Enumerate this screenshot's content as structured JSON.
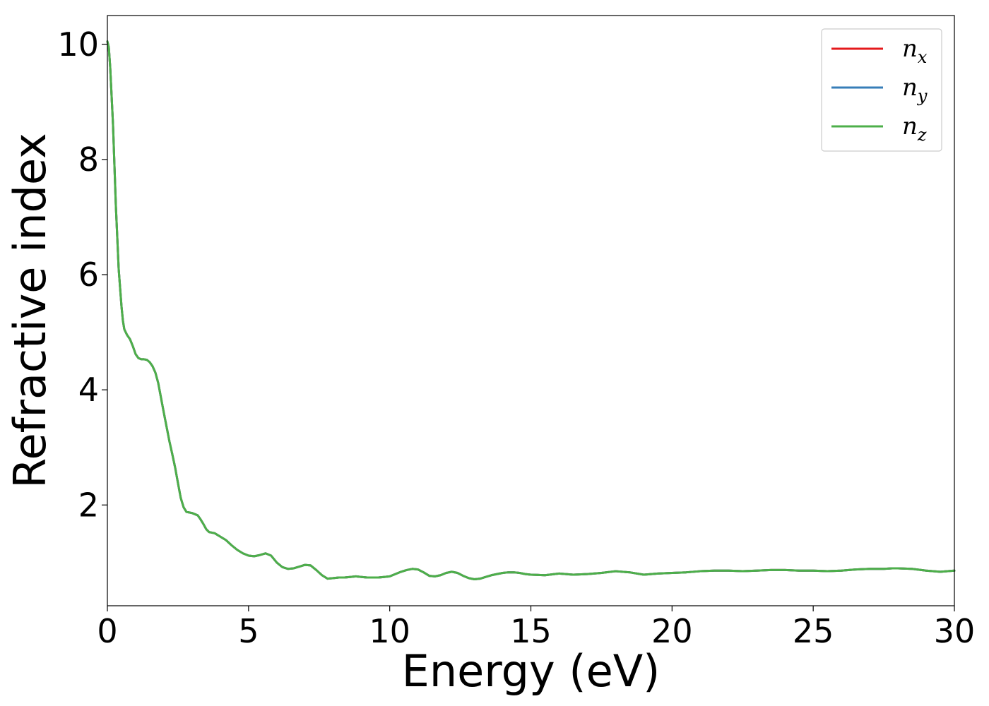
{
  "chart_data": {
    "type": "line",
    "xlabel": "Energy (eV)",
    "ylabel": "Refractive index",
    "xlim": [
      0,
      30
    ],
    "ylim": [
      0.25,
      10.5
    ],
    "xticks": [
      0,
      5,
      10,
      15,
      20,
      25,
      30
    ],
    "xtick_labels": [
      "0",
      "5",
      "10",
      "15",
      "20",
      "25",
      "30"
    ],
    "yticks": [
      2,
      4,
      6,
      8,
      10
    ],
    "ytick_labels": [
      "2",
      "4",
      "6",
      "8",
      "10"
    ],
    "grid": false,
    "legend_position": "top-right",
    "x": [
      0,
      0.05,
      0.1,
      0.2,
      0.3,
      0.4,
      0.5,
      0.55,
      0.6,
      0.7,
      0.8,
      0.9,
      1.0,
      1.1,
      1.2,
      1.3,
      1.4,
      1.5,
      1.6,
      1.7,
      1.8,
      1.9,
      2.0,
      2.1,
      2.2,
      2.3,
      2.4,
      2.5,
      2.6,
      2.7,
      2.8,
      2.9,
      3.0,
      3.1,
      3.2,
      3.3,
      3.4,
      3.5,
      3.6,
      3.7,
      3.8,
      3.9,
      4.0,
      4.2,
      4.4,
      4.6,
      4.8,
      5.0,
      5.2,
      5.4,
      5.6,
      5.8,
      6.0,
      6.2,
      6.4,
      6.6,
      6.8,
      7.0,
      7.2,
      7.4,
      7.6,
      7.8,
      8.0,
      8.2,
      8.4,
      8.6,
      8.8,
      9.0,
      9.2,
      9.4,
      9.6,
      9.8,
      10.0,
      10.2,
      10.4,
      10.6,
      10.8,
      11.0,
      11.2,
      11.4,
      11.6,
      11.8,
      12.0,
      12.2,
      12.4,
      12.6,
      12.8,
      13.0,
      13.2,
      13.4,
      13.6,
      13.8,
      14.0,
      14.2,
      14.4,
      14.6,
      14.8,
      15.0,
      15.5,
      16.0,
      16.5,
      17.0,
      17.5,
      18.0,
      18.5,
      19.0,
      19.5,
      20.0,
      20.5,
      21.0,
      21.5,
      22.0,
      22.5,
      23.0,
      23.5,
      24.0,
      24.5,
      25.0,
      25.5,
      26.0,
      26.5,
      27.0,
      27.5,
      27.8,
      28.0,
      28.5,
      29.0,
      29.5,
      30.0
    ],
    "series": [
      {
        "name": "n_x",
        "name_base": "n",
        "name_sub": "x",
        "color": "#e41a1c",
        "y": [
          10.05,
          9.95,
          9.6,
          8.6,
          7.2,
          6.1,
          5.45,
          5.2,
          5.05,
          4.95,
          4.88,
          4.76,
          4.62,
          4.55,
          4.53,
          4.53,
          4.52,
          4.48,
          4.41,
          4.3,
          4.12,
          3.86,
          3.6,
          3.35,
          3.1,
          2.88,
          2.65,
          2.38,
          2.12,
          1.96,
          1.88,
          1.87,
          1.86,
          1.84,
          1.82,
          1.75,
          1.67,
          1.58,
          1.53,
          1.52,
          1.51,
          1.48,
          1.45,
          1.39,
          1.3,
          1.22,
          1.16,
          1.12,
          1.11,
          1.13,
          1.16,
          1.12,
          1.0,
          0.92,
          0.89,
          0.9,
          0.93,
          0.96,
          0.95,
          0.87,
          0.78,
          0.72,
          0.73,
          0.74,
          0.74,
          0.75,
          0.76,
          0.75,
          0.74,
          0.74,
          0.74,
          0.75,
          0.76,
          0.8,
          0.84,
          0.87,
          0.89,
          0.88,
          0.83,
          0.77,
          0.76,
          0.78,
          0.82,
          0.84,
          0.82,
          0.77,
          0.73,
          0.71,
          0.72,
          0.75,
          0.78,
          0.8,
          0.82,
          0.83,
          0.83,
          0.82,
          0.8,
          0.79,
          0.78,
          0.81,
          0.79,
          0.8,
          0.82,
          0.85,
          0.83,
          0.79,
          0.81,
          0.82,
          0.83,
          0.85,
          0.86,
          0.86,
          0.85,
          0.86,
          0.87,
          0.87,
          0.86,
          0.86,
          0.85,
          0.86,
          0.88,
          0.89,
          0.89,
          0.9,
          0.9,
          0.89,
          0.86,
          0.84,
          0.86
        ]
      },
      {
        "name": "n_y",
        "name_base": "n",
        "name_sub": "y",
        "color": "#377eb8",
        "y": [
          10.05,
          9.95,
          9.6,
          8.6,
          7.2,
          6.1,
          5.45,
          5.2,
          5.05,
          4.95,
          4.88,
          4.76,
          4.62,
          4.55,
          4.53,
          4.53,
          4.52,
          4.48,
          4.41,
          4.3,
          4.12,
          3.86,
          3.6,
          3.35,
          3.1,
          2.88,
          2.65,
          2.38,
          2.12,
          1.96,
          1.88,
          1.87,
          1.86,
          1.84,
          1.82,
          1.75,
          1.67,
          1.58,
          1.53,
          1.52,
          1.51,
          1.48,
          1.45,
          1.39,
          1.3,
          1.22,
          1.16,
          1.12,
          1.11,
          1.13,
          1.16,
          1.12,
          1.0,
          0.92,
          0.89,
          0.9,
          0.93,
          0.96,
          0.95,
          0.87,
          0.78,
          0.72,
          0.73,
          0.74,
          0.74,
          0.75,
          0.76,
          0.75,
          0.74,
          0.74,
          0.74,
          0.75,
          0.76,
          0.8,
          0.84,
          0.87,
          0.89,
          0.88,
          0.83,
          0.77,
          0.76,
          0.78,
          0.82,
          0.84,
          0.82,
          0.77,
          0.73,
          0.71,
          0.72,
          0.75,
          0.78,
          0.8,
          0.82,
          0.83,
          0.83,
          0.82,
          0.8,
          0.79,
          0.78,
          0.81,
          0.79,
          0.8,
          0.82,
          0.85,
          0.83,
          0.79,
          0.81,
          0.82,
          0.83,
          0.85,
          0.86,
          0.86,
          0.85,
          0.86,
          0.87,
          0.87,
          0.86,
          0.86,
          0.85,
          0.86,
          0.88,
          0.89,
          0.89,
          0.9,
          0.9,
          0.89,
          0.86,
          0.84,
          0.86
        ]
      },
      {
        "name": "n_z",
        "name_base": "n",
        "name_sub": "z",
        "color": "#4daf4a",
        "y": [
          10.05,
          9.95,
          9.6,
          8.6,
          7.2,
          6.1,
          5.45,
          5.2,
          5.05,
          4.95,
          4.88,
          4.76,
          4.62,
          4.55,
          4.53,
          4.53,
          4.52,
          4.48,
          4.41,
          4.3,
          4.12,
          3.86,
          3.6,
          3.35,
          3.1,
          2.88,
          2.65,
          2.38,
          2.12,
          1.96,
          1.88,
          1.87,
          1.86,
          1.84,
          1.82,
          1.75,
          1.67,
          1.58,
          1.53,
          1.52,
          1.51,
          1.48,
          1.45,
          1.39,
          1.3,
          1.22,
          1.16,
          1.12,
          1.11,
          1.13,
          1.16,
          1.12,
          1.0,
          0.92,
          0.89,
          0.9,
          0.93,
          0.96,
          0.95,
          0.87,
          0.78,
          0.72,
          0.73,
          0.74,
          0.74,
          0.75,
          0.76,
          0.75,
          0.74,
          0.74,
          0.74,
          0.75,
          0.76,
          0.8,
          0.84,
          0.87,
          0.89,
          0.88,
          0.83,
          0.77,
          0.76,
          0.78,
          0.82,
          0.84,
          0.82,
          0.77,
          0.73,
          0.71,
          0.72,
          0.75,
          0.78,
          0.8,
          0.82,
          0.83,
          0.83,
          0.82,
          0.8,
          0.79,
          0.78,
          0.81,
          0.79,
          0.8,
          0.82,
          0.85,
          0.83,
          0.79,
          0.81,
          0.82,
          0.83,
          0.85,
          0.86,
          0.86,
          0.85,
          0.86,
          0.87,
          0.87,
          0.86,
          0.86,
          0.85,
          0.86,
          0.88,
          0.89,
          0.89,
          0.9,
          0.9,
          0.89,
          0.86,
          0.84,
          0.86
        ]
      }
    ]
  }
}
